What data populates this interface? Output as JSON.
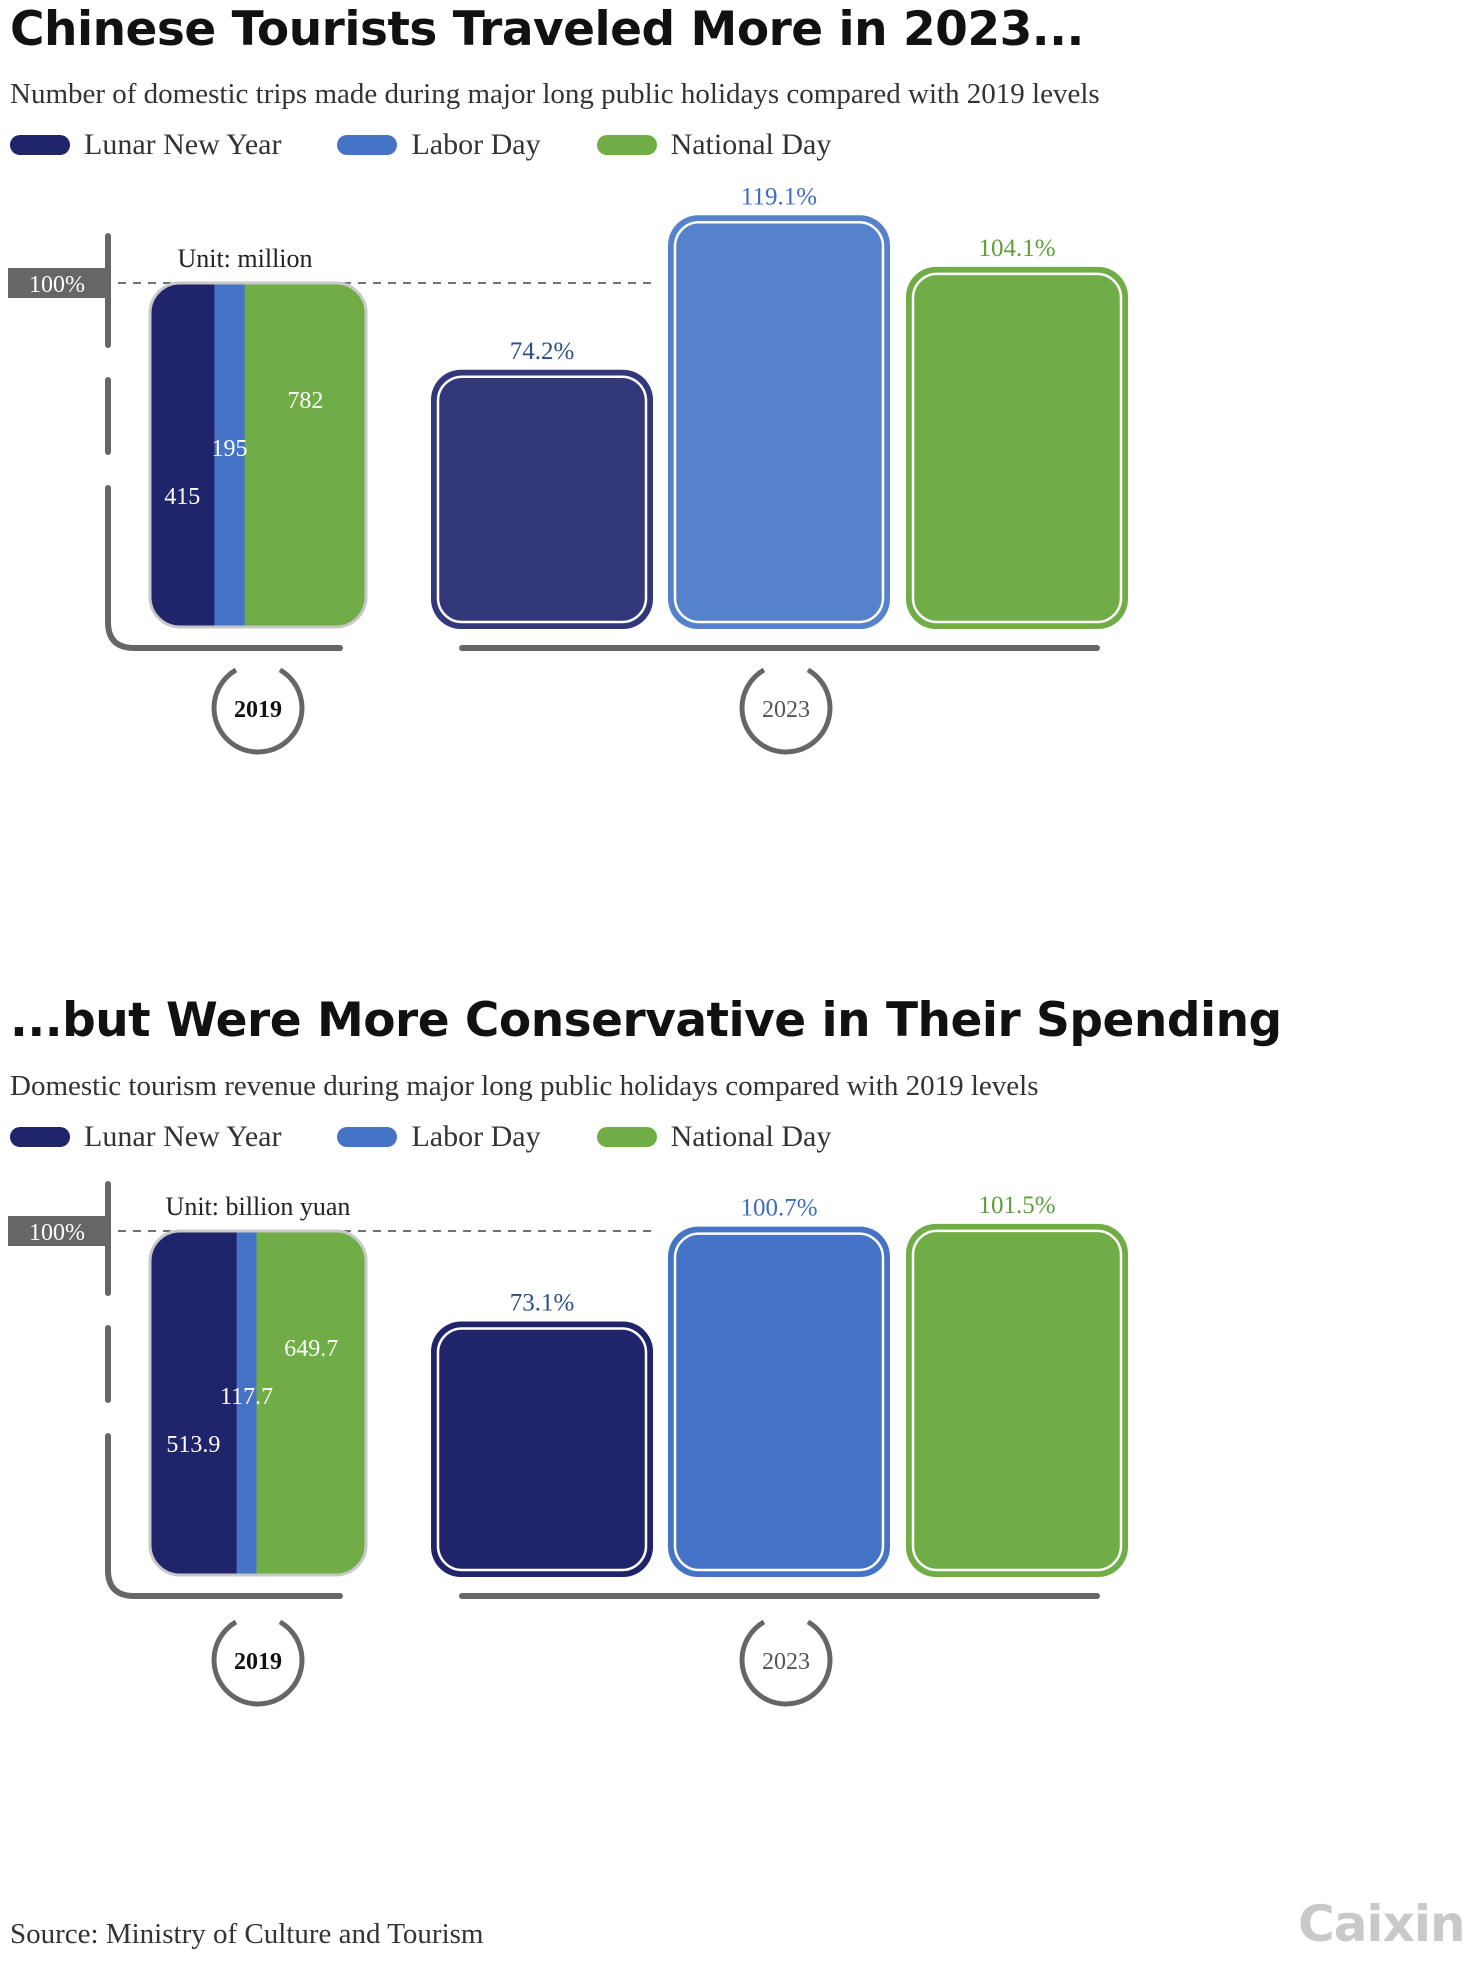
{
  "colors": {
    "lunar": "#20246a",
    "lunar_2023_trips": "#323879",
    "labor": "#4574c6",
    "labor_2023_trips": "#5582cb",
    "national": "#70ad47",
    "axis": "#666666",
    "label_lunar": "#2b4e86",
    "label_labor": "#3f6cbf",
    "label_national": "#5f9e3b"
  },
  "legend": [
    {
      "label": "Lunar New Year",
      "color": "#20246a"
    },
    {
      "label": "Labor Day",
      "color": "#4574c6"
    },
    {
      "label": "National Day",
      "color": "#70ad47"
    }
  ],
  "chart_data": [
    {
      "type": "bar",
      "title": "Chinese Tourists Traveled More in 2023...",
      "subtitle": "Number of domestic trips made during major long public holidays compared with 2019 levels",
      "unit": "Unit: million",
      "reference_label": "100%",
      "x_labels": [
        "2019",
        "2023"
      ],
      "series": [
        "Lunar New Year",
        "Labor Day",
        "National Day"
      ],
      "values_2019": [
        415,
        195,
        782
      ],
      "values_2019_labels": [
        "415",
        "195",
        "782"
      ],
      "values_2023_pct": [
        74.2,
        119.1,
        104.1
      ],
      "values_2023_labels": [
        "74.2%",
        "119.1%",
        "104.1%"
      ]
    },
    {
      "type": "bar",
      "title": "...but Were More Conservative in Their Spending",
      "subtitle": "Domestic tourism revenue during major long public holidays compared with 2019 levels",
      "unit": "Unit: billion yuan",
      "reference_label": "100%",
      "x_labels": [
        "2019",
        "2023"
      ],
      "series": [
        "Lunar New Year",
        "Labor Day",
        "National Day"
      ],
      "values_2019": [
        513.9,
        117.7,
        649.7
      ],
      "values_2019_labels": [
        "513.9",
        "117.7",
        "649.7"
      ],
      "values_2023_pct": [
        73.1,
        100.7,
        101.5
      ],
      "values_2023_labels": [
        "73.1%",
        "100.7%",
        "101.5%"
      ]
    }
  ],
  "source": "Source: Ministry of Culture and Tourism",
  "logo": "Caixin"
}
